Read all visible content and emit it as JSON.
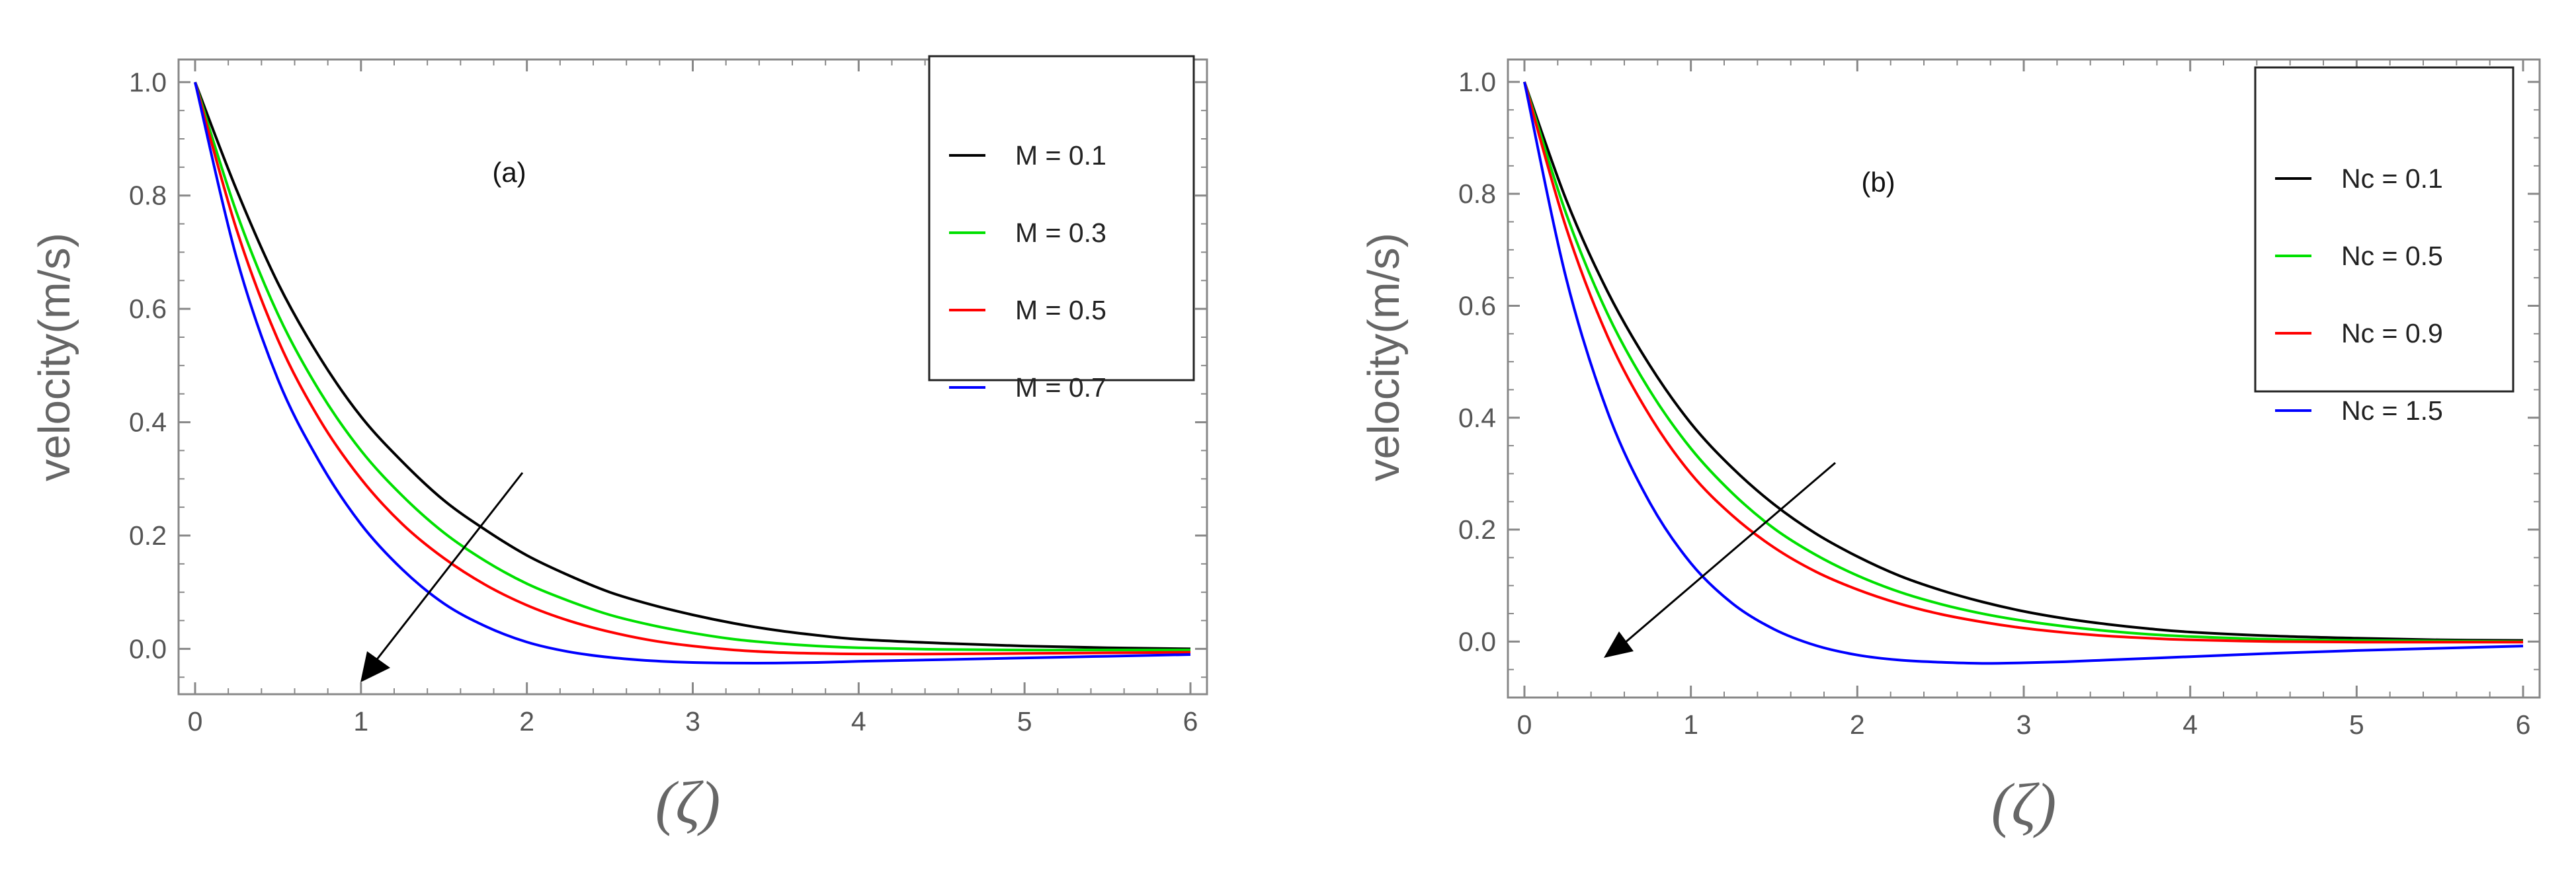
{
  "figure": {
    "ylabel": "velocity(m/s)",
    "xlabel": "(ζ)"
  },
  "chart_data": [
    {
      "type": "line",
      "panel_label": "(a)",
      "xlabel": "(ζ)",
      "ylabel": "velocity(m/s)",
      "xlim": [
        0,
        6
      ],
      "ylim": [
        -0.08,
        1.04
      ],
      "xticks": [
        0,
        1,
        2,
        3,
        4,
        5,
        6
      ],
      "yticks": [
        0.0,
        0.2,
        0.4,
        0.6,
        0.8,
        1.0
      ],
      "legend_position": "top-right",
      "x": [
        0,
        0.25,
        0.5,
        0.75,
        1,
        1.25,
        1.5,
        1.75,
        2,
        2.25,
        2.5,
        2.75,
        3,
        3.25,
        3.5,
        3.75,
        4,
        4.5,
        5,
        5.5,
        6
      ],
      "series": [
        {
          "name": "M = 0.1",
          "color": "#000000",
          "values": [
            1.0,
            0.81,
            0.645,
            0.515,
            0.41,
            0.33,
            0.262,
            0.21,
            0.165,
            0.13,
            0.1,
            0.078,
            0.06,
            0.045,
            0.033,
            0.024,
            0.017,
            0.01,
            0.005,
            0.002,
            0.0
          ]
        },
        {
          "name": "M = 0.3",
          "color": "#00e000",
          "values": [
            1.0,
            0.77,
            0.59,
            0.455,
            0.35,
            0.27,
            0.205,
            0.155,
            0.115,
            0.085,
            0.06,
            0.042,
            0.028,
            0.017,
            0.01,
            0.005,
            0.002,
            -0.001,
            -0.002,
            -0.002,
            -0.002
          ]
        },
        {
          "name": "M = 0.5",
          "color": "#ff0000",
          "values": [
            1.0,
            0.74,
            0.545,
            0.405,
            0.3,
            0.22,
            0.16,
            0.113,
            0.077,
            0.05,
            0.03,
            0.015,
            0.005,
            -0.002,
            -0.006,
            -0.008,
            -0.009,
            -0.009,
            -0.008,
            -0.007,
            -0.006
          ]
        },
        {
          "name": "M = 0.7",
          "color": "#0000ff",
          "values": [
            1.0,
            0.69,
            0.475,
            0.33,
            0.22,
            0.14,
            0.08,
            0.04,
            0.012,
            -0.005,
            -0.015,
            -0.021,
            -0.024,
            -0.025,
            -0.025,
            -0.024,
            -0.022,
            -0.019,
            -0.016,
            -0.013,
            -0.01
          ]
        }
      ]
    },
    {
      "type": "line",
      "panel_label": "(b)",
      "xlabel": "(ζ)",
      "ylabel": "velocity(m/s)",
      "xlim": [
        0,
        6
      ],
      "ylim": [
        -0.1,
        1.04
      ],
      "xticks": [
        0,
        1,
        2,
        3,
        4,
        5,
        6
      ],
      "yticks": [
        0.0,
        0.2,
        0.4,
        0.6,
        0.8,
        1.0
      ],
      "legend_position": "top-right",
      "x": [
        0,
        0.25,
        0.5,
        0.75,
        1,
        1.25,
        1.5,
        1.75,
        2,
        2.25,
        2.5,
        2.75,
        3,
        3.25,
        3.5,
        3.75,
        4,
        4.5,
        5,
        5.5,
        6
      ],
      "series": [
        {
          "name": "Nc = 0.1",
          "color": "#000000",
          "values": [
            1.0,
            0.79,
            0.625,
            0.495,
            0.39,
            0.31,
            0.245,
            0.193,
            0.152,
            0.118,
            0.092,
            0.071,
            0.054,
            0.041,
            0.031,
            0.023,
            0.017,
            0.01,
            0.006,
            0.003,
            0.002
          ]
        },
        {
          "name": "Nc = 0.5",
          "color": "#00e000",
          "values": [
            1.0,
            0.765,
            0.585,
            0.45,
            0.345,
            0.265,
            0.202,
            0.155,
            0.118,
            0.089,
            0.067,
            0.05,
            0.037,
            0.027,
            0.019,
            0.013,
            0.009,
            0.004,
            0.002,
            0.001,
            0.0
          ]
        },
        {
          "name": "Nc = 0.9",
          "color": "#ff0000",
          "values": [
            1.0,
            0.74,
            0.545,
            0.405,
            0.3,
            0.225,
            0.168,
            0.125,
            0.093,
            0.068,
            0.049,
            0.035,
            0.024,
            0.016,
            0.01,
            0.006,
            0.003,
            0.0,
            -0.001,
            -0.001,
            -0.001
          ]
        },
        {
          "name": "Nc = 1.5",
          "color": "#0000ff",
          "values": [
            1.0,
            0.65,
            0.41,
            0.25,
            0.14,
            0.068,
            0.022,
            -0.007,
            -0.024,
            -0.033,
            -0.037,
            -0.039,
            -0.038,
            -0.036,
            -0.033,
            -0.03,
            -0.027,
            -0.021,
            -0.016,
            -0.012,
            -0.008
          ]
        }
      ]
    }
  ]
}
